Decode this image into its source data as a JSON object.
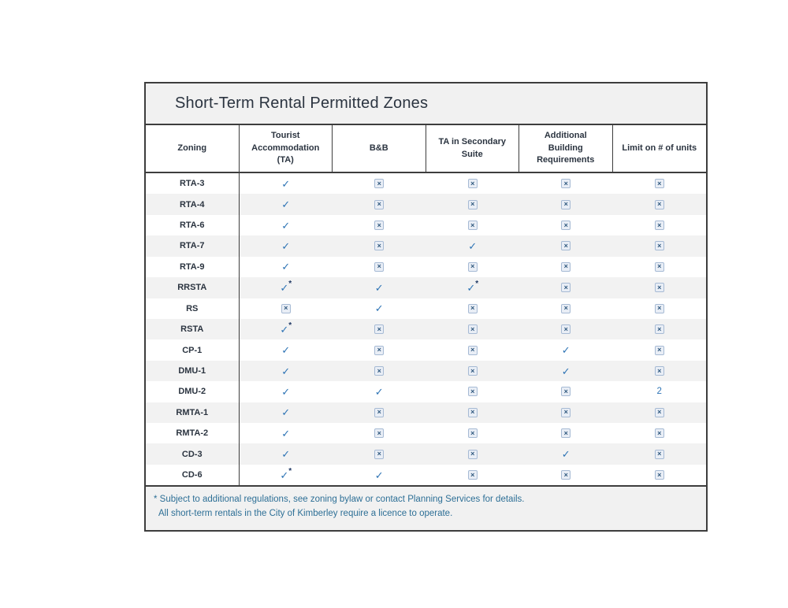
{
  "table": {
    "title": "Short-Term Rental Permitted Zones",
    "columns": [
      "Zoning",
      "Tourist Accommodation (TA)",
      "B&B",
      "TA in Secondary Suite",
      "Additional Building Requirements",
      "Limit on # of units"
    ],
    "rows": [
      {
        "zone": "RTA-3",
        "cells": [
          "check",
          "x",
          "x",
          "x",
          "x"
        ]
      },
      {
        "zone": "RTA-4",
        "cells": [
          "check",
          "x",
          "x",
          "x",
          "x"
        ]
      },
      {
        "zone": "RTA-6",
        "cells": [
          "check",
          "x",
          "x",
          "x",
          "x"
        ]
      },
      {
        "zone": "RTA-7",
        "cells": [
          "check",
          "x",
          "check",
          "x",
          "x"
        ]
      },
      {
        "zone": "RTA-9",
        "cells": [
          "check",
          "x",
          "x",
          "x",
          "x"
        ]
      },
      {
        "zone": "RRSTA",
        "cells": [
          "check*",
          "check",
          "check*",
          "x",
          "x"
        ]
      },
      {
        "zone": "RS",
        "cells": [
          "x",
          "check",
          "x",
          "x",
          "x"
        ]
      },
      {
        "zone": "RSTA",
        "cells": [
          "check*",
          "x",
          "x",
          "x",
          "x"
        ]
      },
      {
        "zone": "CP-1",
        "cells": [
          "check",
          "x",
          "x",
          "check",
          "x"
        ]
      },
      {
        "zone": "DMU-1",
        "cells": [
          "check",
          "x",
          "x",
          "check",
          "x"
        ]
      },
      {
        "zone": "DMU-2",
        "cells": [
          "check",
          "check",
          "x",
          "x",
          "2"
        ]
      },
      {
        "zone": "RMTA-1",
        "cells": [
          "check",
          "x",
          "x",
          "x",
          "x"
        ]
      },
      {
        "zone": "RMTA-2",
        "cells": [
          "check",
          "x",
          "x",
          "x",
          "x"
        ]
      },
      {
        "zone": "CD-3",
        "cells": [
          "check",
          "x",
          "x",
          "check",
          "x"
        ]
      },
      {
        "zone": "CD-6",
        "cells": [
          "check*",
          "check",
          "x",
          "x",
          "x"
        ]
      }
    ],
    "footnotes": [
      "* Subject to additional regulations, see zoning bylaw or contact Planning Services for details.",
      "All short-term rentals in the City of Kimberley require a licence to operate."
    ]
  },
  "icons": {
    "check_glyph": "✓",
    "x_box_glyph": "×",
    "asterisk_glyph": "*"
  },
  "colors": {
    "check": "#2e74b5",
    "asterisk": "#1f3864",
    "x_box_border": "#a6bad4",
    "x_box_background": "#e9eef6",
    "x_box_glyph": "#30597f",
    "heading_text": "#2b3440",
    "footnote_text": "#2d6f96",
    "row_stripe": "#f2f2f2",
    "band_background": "#f1f1f1",
    "table_border": "#3d3d3d",
    "limit_number": "#2e74b5"
  }
}
